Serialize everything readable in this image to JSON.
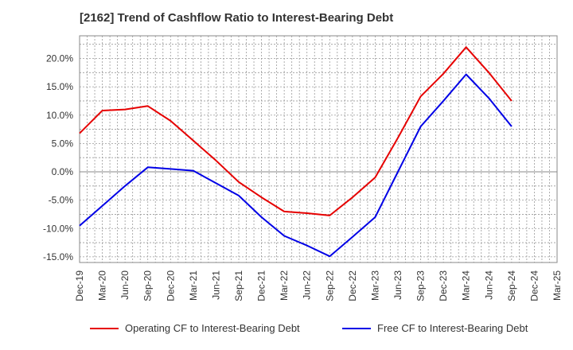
{
  "chart_data": {
    "type": "line",
    "title": "[2162]  Trend of Cashflow Ratio to Interest-Bearing Debt",
    "xlabel": "",
    "ylabel": "",
    "categories": [
      "Dec-19",
      "Mar-20",
      "Jun-20",
      "Sep-20",
      "Dec-20",
      "Mar-21",
      "Jun-21",
      "Sep-21",
      "Dec-21",
      "Mar-22",
      "Jun-22",
      "Sep-22",
      "Dec-22",
      "Mar-23",
      "Jun-23",
      "Sep-23",
      "Dec-23",
      "Mar-24",
      "Jun-24",
      "Sep-24",
      "Dec-24",
      "Mar-25"
    ],
    "ylim": [
      -16,
      24
    ],
    "yticks": [
      -15,
      -10,
      -5,
      0,
      5,
      10,
      15,
      20
    ],
    "ytick_labels": [
      "-15.0%",
      "-10.0%",
      "-5.0%",
      "0.0%",
      "5.0%",
      "10.0%",
      "15.0%",
      "20.0%"
    ],
    "grid": true,
    "legend_position": "bottom",
    "series": [
      {
        "name": "Operating CF to Interest-Bearing Debt",
        "color": "#e60000",
        "values": [
          6.8,
          10.8,
          11.0,
          11.6,
          9.0,
          5.5,
          2.0,
          -1.8,
          -4.5,
          -7.0,
          -7.3,
          -7.7,
          -4.5,
          -1.0,
          6.0,
          13.3,
          17.3,
          22.0,
          17.5,
          12.5,
          null,
          null
        ]
      },
      {
        "name": "Free CF to Interest-Bearing Debt",
        "color": "#0000e6",
        "values": [
          -9.5,
          -6.0,
          -2.5,
          0.8,
          0.5,
          0.2,
          -2.0,
          -4.2,
          -8.0,
          -11.3,
          -13.0,
          -14.9,
          -11.5,
          -8.0,
          0.0,
          8.0,
          12.5,
          17.2,
          13.0,
          8.0,
          null,
          null
        ]
      }
    ]
  }
}
